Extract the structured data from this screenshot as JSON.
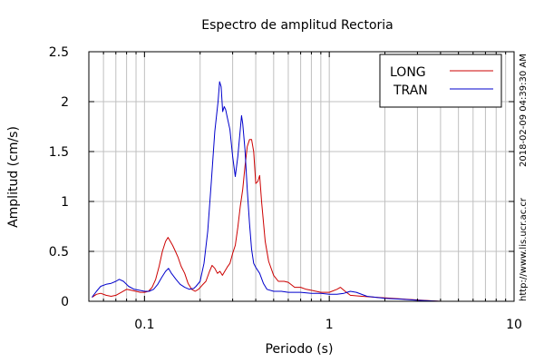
{
  "chart_data": {
    "type": "line",
    "title": "Espectro de amplitud Rectoria",
    "xlabel": "Periodo (s)",
    "ylabel": "Amplitud (cm/s)",
    "x_scale": "log",
    "xlim": [
      0.05,
      10
    ],
    "ylim": [
      0,
      2.5
    ],
    "x_ticks": [
      {
        "value": 0.1,
        "label": "0.1"
      },
      {
        "value": 1,
        "label": "1"
      },
      {
        "value": 10,
        "label": "10"
      }
    ],
    "y_ticks": [
      {
        "value": 0,
        "label": "0"
      },
      {
        "value": 0.5,
        "label": "0.5"
      },
      {
        "value": 1,
        "label": "1"
      },
      {
        "value": 1.5,
        "label": "1.5"
      },
      {
        "value": 2,
        "label": "2"
      },
      {
        "value": 2.5,
        "label": "2.5"
      }
    ],
    "grid": true,
    "legend_position": "top-right",
    "series": [
      {
        "name": "LONG",
        "color": "#cc0000",
        "points": [
          [
            0.052,
            0.04
          ],
          [
            0.055,
            0.07
          ],
          [
            0.058,
            0.08
          ],
          [
            0.062,
            0.06
          ],
          [
            0.066,
            0.05
          ],
          [
            0.07,
            0.06
          ],
          [
            0.075,
            0.09
          ],
          [
            0.08,
            0.12
          ],
          [
            0.085,
            0.11
          ],
          [
            0.09,
            0.1
          ],
          [
            0.095,
            0.09
          ],
          [
            0.1,
            0.09
          ],
          [
            0.105,
            0.1
          ],
          [
            0.11,
            0.14
          ],
          [
            0.115,
            0.22
          ],
          [
            0.12,
            0.35
          ],
          [
            0.125,
            0.5
          ],
          [
            0.13,
            0.6
          ],
          [
            0.134,
            0.64
          ],
          [
            0.138,
            0.6
          ],
          [
            0.142,
            0.56
          ],
          [
            0.147,
            0.5
          ],
          [
            0.152,
            0.44
          ],
          [
            0.158,
            0.35
          ],
          [
            0.165,
            0.28
          ],
          [
            0.172,
            0.18
          ],
          [
            0.18,
            0.12
          ],
          [
            0.188,
            0.1
          ],
          [
            0.196,
            0.12
          ],
          [
            0.205,
            0.16
          ],
          [
            0.215,
            0.2
          ],
          [
            0.225,
            0.3
          ],
          [
            0.232,
            0.36
          ],
          [
            0.24,
            0.33
          ],
          [
            0.248,
            0.28
          ],
          [
            0.256,
            0.3
          ],
          [
            0.264,
            0.26
          ],
          [
            0.272,
            0.3
          ],
          [
            0.28,
            0.34
          ],
          [
            0.29,
            0.38
          ],
          [
            0.3,
            0.48
          ],
          [
            0.31,
            0.56
          ],
          [
            0.32,
            0.74
          ],
          [
            0.33,
            0.95
          ],
          [
            0.34,
            1.12
          ],
          [
            0.35,
            1.35
          ],
          [
            0.36,
            1.55
          ],
          [
            0.37,
            1.62
          ],
          [
            0.38,
            1.62
          ],
          [
            0.39,
            1.5
          ],
          [
            0.4,
            1.18
          ],
          [
            0.41,
            1.2
          ],
          [
            0.42,
            1.26
          ],
          [
            0.43,
            1.0
          ],
          [
            0.45,
            0.6
          ],
          [
            0.47,
            0.4
          ],
          [
            0.5,
            0.26
          ],
          [
            0.53,
            0.2
          ],
          [
            0.57,
            0.2
          ],
          [
            0.6,
            0.19
          ],
          [
            0.65,
            0.14
          ],
          [
            0.7,
            0.14
          ],
          [
            0.75,
            0.12
          ],
          [
            0.8,
            0.11
          ],
          [
            0.9,
            0.09
          ],
          [
            1.0,
            0.09
          ],
          [
            1.1,
            0.12
          ],
          [
            1.15,
            0.14
          ],
          [
            1.2,
            0.11
          ],
          [
            1.3,
            0.06
          ],
          [
            1.5,
            0.05
          ],
          [
            1.8,
            0.04
          ],
          [
            2.2,
            0.03
          ],
          [
            2.6,
            0.02
          ],
          [
            3.2,
            0.01
          ],
          [
            4.0,
            0.0
          ],
          [
            6.0,
            0.0
          ],
          [
            10.0,
            0.0
          ]
        ]
      },
      {
        "name": "TRAN",
        "color": "#0000cc",
        "points": [
          [
            0.052,
            0.04
          ],
          [
            0.055,
            0.1
          ],
          [
            0.058,
            0.15
          ],
          [
            0.062,
            0.17
          ],
          [
            0.066,
            0.18
          ],
          [
            0.07,
            0.2
          ],
          [
            0.073,
            0.22
          ],
          [
            0.077,
            0.2
          ],
          [
            0.082,
            0.15
          ],
          [
            0.088,
            0.12
          ],
          [
            0.094,
            0.11
          ],
          [
            0.1,
            0.1
          ],
          [
            0.106,
            0.1
          ],
          [
            0.112,
            0.12
          ],
          [
            0.118,
            0.17
          ],
          [
            0.124,
            0.24
          ],
          [
            0.13,
            0.3
          ],
          [
            0.135,
            0.33
          ],
          [
            0.14,
            0.28
          ],
          [
            0.148,
            0.22
          ],
          [
            0.156,
            0.17
          ],
          [
            0.165,
            0.14
          ],
          [
            0.175,
            0.12
          ],
          [
            0.185,
            0.13
          ],
          [
            0.19,
            0.15
          ],
          [
            0.2,
            0.2
          ],
          [
            0.21,
            0.38
          ],
          [
            0.22,
            0.7
          ],
          [
            0.23,
            1.2
          ],
          [
            0.24,
            1.7
          ],
          [
            0.25,
            2.0
          ],
          [
            0.255,
            2.2
          ],
          [
            0.26,
            2.15
          ],
          [
            0.265,
            1.9
          ],
          [
            0.27,
            1.95
          ],
          [
            0.275,
            1.92
          ],
          [
            0.28,
            1.85
          ],
          [
            0.29,
            1.72
          ],
          [
            0.3,
            1.45
          ],
          [
            0.31,
            1.25
          ],
          [
            0.32,
            1.45
          ],
          [
            0.33,
            1.72
          ],
          [
            0.335,
            1.86
          ],
          [
            0.34,
            1.78
          ],
          [
            0.35,
            1.52
          ],
          [
            0.36,
            1.12
          ],
          [
            0.37,
            0.78
          ],
          [
            0.38,
            0.52
          ],
          [
            0.39,
            0.38
          ],
          [
            0.4,
            0.34
          ],
          [
            0.42,
            0.28
          ],
          [
            0.44,
            0.18
          ],
          [
            0.46,
            0.12
          ],
          [
            0.5,
            0.1
          ],
          [
            0.55,
            0.1
          ],
          [
            0.6,
            0.09
          ],
          [
            0.7,
            0.09
          ],
          [
            0.8,
            0.08
          ],
          [
            0.9,
            0.08
          ],
          [
            1.0,
            0.07
          ],
          [
            1.1,
            0.07
          ],
          [
            1.2,
            0.08
          ],
          [
            1.3,
            0.1
          ],
          [
            1.4,
            0.09
          ],
          [
            1.6,
            0.05
          ],
          [
            2.0,
            0.03
          ],
          [
            2.5,
            0.02
          ],
          [
            3.0,
            0.01
          ],
          [
            4.0,
            0.0
          ],
          [
            6.0,
            0.0
          ],
          [
            10.0,
            0.0
          ]
        ]
      }
    ]
  },
  "annotations": {
    "timestamp": "2018-02-09 04:39:30 AM",
    "url": "http://www.lis.ucr.ac.cr"
  }
}
